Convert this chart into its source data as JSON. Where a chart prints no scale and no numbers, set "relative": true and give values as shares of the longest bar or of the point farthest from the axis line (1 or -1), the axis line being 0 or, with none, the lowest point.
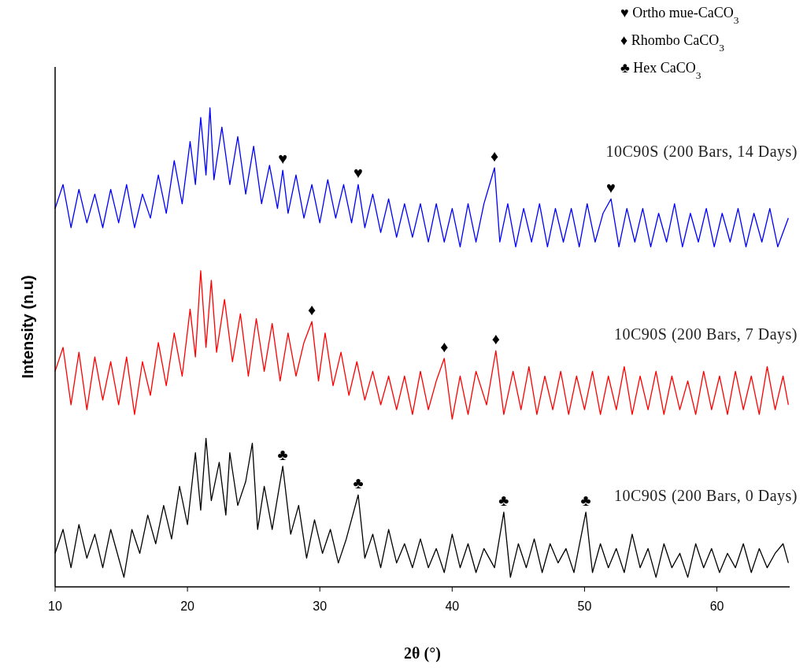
{
  "chart_data": {
    "type": "line",
    "relative": true,
    "xlabel": "2θ (°)",
    "ylabel": "Intensity (n.u)",
    "xlim": [
      10,
      65.5
    ],
    "xticks": [
      10,
      20,
      30,
      40,
      50,
      60
    ],
    "grid": false,
    "line_style": "solid",
    "series": [
      {
        "name": "10C90S (200 Bars, 14 Days)",
        "color": "#0000ff",
        "x": [
          10.0,
          10.6,
          11.2,
          11.8,
          12.4,
          13.0,
          13.6,
          14.2,
          14.8,
          15.4,
          16.0,
          16.6,
          17.2,
          17.8,
          18.4,
          19.0,
          19.6,
          20.2,
          20.6,
          21.0,
          21.4,
          21.7,
          22.0,
          22.6,
          23.2,
          23.8,
          24.4,
          25.0,
          25.6,
          26.2,
          26.8,
          27.2,
          27.6,
          28.2,
          28.8,
          29.4,
          30.0,
          30.6,
          31.2,
          31.8,
          32.4,
          32.9,
          33.4,
          34.0,
          34.6,
          35.2,
          35.8,
          36.4,
          37.0,
          37.6,
          38.2,
          38.8,
          39.4,
          40.0,
          40.6,
          41.2,
          41.8,
          42.4,
          43.2,
          43.6,
          44.2,
          44.8,
          45.4,
          46.0,
          46.6,
          47.2,
          47.8,
          48.4,
          49.0,
          49.6,
          50.2,
          50.8,
          51.4,
          52.0,
          52.6,
          53.2,
          53.8,
          54.4,
          55.0,
          55.6,
          56.2,
          56.8,
          57.4,
          58.0,
          58.6,
          59.2,
          59.8,
          60.4,
          61.0,
          61.6,
          62.2,
          62.8,
          63.4,
          64.0,
          64.6,
          65.4
        ],
        "values": [
          0.79,
          0.84,
          0.75,
          0.83,
          0.76,
          0.82,
          0.75,
          0.83,
          0.76,
          0.84,
          0.75,
          0.82,
          0.77,
          0.86,
          0.78,
          0.89,
          0.8,
          0.93,
          0.84,
          0.98,
          0.86,
          1.0,
          0.85,
          0.96,
          0.84,
          0.94,
          0.82,
          0.92,
          0.8,
          0.88,
          0.79,
          0.87,
          0.78,
          0.86,
          0.77,
          0.84,
          0.76,
          0.85,
          0.77,
          0.84,
          0.76,
          0.84,
          0.75,
          0.82,
          0.74,
          0.81,
          0.73,
          0.8,
          0.73,
          0.8,
          0.72,
          0.8,
          0.72,
          0.79,
          0.71,
          0.8,
          0.72,
          0.8,
          0.875,
          0.72,
          0.8,
          0.71,
          0.79,
          0.72,
          0.8,
          0.71,
          0.79,
          0.72,
          0.79,
          0.71,
          0.8,
          0.72,
          0.78,
          0.81,
          0.71,
          0.79,
          0.72,
          0.79,
          0.71,
          0.78,
          0.72,
          0.8,
          0.71,
          0.78,
          0.72,
          0.79,
          0.71,
          0.78,
          0.72,
          0.79,
          0.71,
          0.78,
          0.72,
          0.79,
          0.71,
          0.77
        ]
      },
      {
        "name": "10C90S (200 Bars, 7 Days)",
        "color": "#ff0000",
        "x": [
          10.0,
          10.6,
          11.2,
          11.8,
          12.4,
          13.0,
          13.6,
          14.2,
          14.8,
          15.4,
          16.0,
          16.6,
          17.2,
          17.8,
          18.4,
          19.0,
          19.6,
          20.2,
          20.6,
          21.0,
          21.4,
          21.8,
          22.2,
          22.8,
          23.4,
          24.0,
          24.6,
          25.2,
          25.8,
          26.4,
          27.0,
          27.6,
          28.2,
          28.8,
          29.4,
          29.9,
          30.4,
          31.0,
          31.6,
          32.2,
          32.8,
          33.4,
          34.0,
          34.6,
          35.2,
          35.8,
          36.4,
          37.0,
          37.6,
          38.2,
          38.8,
          39.4,
          40.0,
          40.6,
          41.2,
          41.8,
          42.6,
          43.3,
          43.9,
          44.6,
          45.2,
          45.8,
          46.4,
          47.0,
          47.6,
          48.2,
          48.8,
          49.4,
          50.0,
          50.6,
          51.2,
          51.8,
          52.4,
          53.0,
          53.6,
          54.2,
          54.8,
          55.4,
          56.0,
          56.6,
          57.2,
          57.8,
          58.4,
          59.0,
          59.6,
          60.2,
          60.8,
          61.4,
          62.0,
          62.6,
          63.2,
          63.8,
          64.4,
          65.0,
          65.4
        ],
        "values": [
          0.45,
          0.5,
          0.38,
          0.49,
          0.37,
          0.48,
          0.39,
          0.47,
          0.38,
          0.48,
          0.36,
          0.47,
          0.4,
          0.51,
          0.42,
          0.53,
          0.44,
          0.58,
          0.48,
          0.66,
          0.5,
          0.64,
          0.49,
          0.6,
          0.47,
          0.57,
          0.44,
          0.56,
          0.45,
          0.55,
          0.43,
          0.53,
          0.44,
          0.51,
          0.554,
          0.43,
          0.53,
          0.42,
          0.49,
          0.4,
          0.47,
          0.39,
          0.45,
          0.38,
          0.44,
          0.37,
          0.44,
          0.36,
          0.45,
          0.37,
          0.43,
          0.477,
          0.35,
          0.44,
          0.36,
          0.45,
          0.38,
          0.493,
          0.36,
          0.45,
          0.37,
          0.46,
          0.36,
          0.44,
          0.37,
          0.45,
          0.36,
          0.44,
          0.37,
          0.45,
          0.36,
          0.44,
          0.37,
          0.46,
          0.36,
          0.44,
          0.37,
          0.45,
          0.36,
          0.44,
          0.37,
          0.43,
          0.36,
          0.45,
          0.37,
          0.44,
          0.36,
          0.45,
          0.37,
          0.44,
          0.36,
          0.46,
          0.37,
          0.44,
          0.38
        ]
      },
      {
        "name": "10C90S (200 Bars, 0 Days)",
        "color": "#000000",
        "x": [
          10.0,
          10.6,
          11.2,
          11.8,
          12.4,
          13.0,
          13.6,
          14.2,
          14.8,
          15.2,
          15.8,
          16.4,
          17.0,
          17.6,
          18.2,
          18.8,
          19.4,
          20.0,
          20.6,
          21.0,
          21.4,
          21.8,
          22.4,
          22.9,
          23.2,
          23.8,
          24.4,
          24.9,
          25.3,
          25.8,
          26.4,
          27.2,
          27.8,
          28.4,
          29.0,
          29.6,
          30.2,
          30.8,
          31.4,
          32.0,
          32.9,
          33.4,
          34.0,
          34.6,
          35.2,
          35.8,
          36.4,
          37.0,
          37.6,
          38.2,
          38.8,
          39.4,
          40.0,
          40.6,
          41.2,
          41.8,
          42.4,
          43.2,
          43.9,
          44.4,
          45.0,
          45.6,
          46.2,
          46.8,
          47.4,
          48.0,
          48.6,
          49.2,
          50.1,
          50.6,
          51.2,
          51.8,
          52.4,
          53.0,
          53.6,
          54.2,
          54.8,
          55.4,
          56.0,
          56.6,
          57.2,
          57.8,
          58.4,
          59.0,
          59.6,
          60.2,
          60.8,
          61.4,
          62.0,
          62.6,
          63.2,
          63.8,
          64.4,
          65.0,
          65.4
        ],
        "values": [
          0.07,
          0.12,
          0.04,
          0.13,
          0.06,
          0.11,
          0.04,
          0.12,
          0.06,
          0.02,
          0.12,
          0.07,
          0.15,
          0.09,
          0.17,
          0.1,
          0.21,
          0.13,
          0.28,
          0.16,
          0.31,
          0.18,
          0.26,
          0.15,
          0.28,
          0.17,
          0.22,
          0.3,
          0.12,
          0.21,
          0.12,
          0.252,
          0.11,
          0.17,
          0.06,
          0.14,
          0.07,
          0.12,
          0.05,
          0.1,
          0.192,
          0.06,
          0.11,
          0.04,
          0.12,
          0.05,
          0.09,
          0.04,
          0.1,
          0.04,
          0.08,
          0.03,
          0.11,
          0.04,
          0.09,
          0.03,
          0.08,
          0.04,
          0.156,
          0.02,
          0.09,
          0.04,
          0.1,
          0.03,
          0.09,
          0.05,
          0.08,
          0.03,
          0.156,
          0.03,
          0.09,
          0.04,
          0.08,
          0.03,
          0.11,
          0.04,
          0.08,
          0.02,
          0.09,
          0.04,
          0.07,
          0.02,
          0.09,
          0.04,
          0.08,
          0.03,
          0.07,
          0.04,
          0.09,
          0.03,
          0.08,
          0.04,
          0.07,
          0.09,
          0.05
        ]
      }
    ],
    "annotations": [
      "♥ Ortho mue-CaCO$_{3}$",
      "♦ Rhombo CaCO$_{3}$",
      "♣ Hex CaCO$_{3}$",
      {
        "text": "♥",
        "x": 27.2,
        "y": 0.87
      },
      {
        "text": "♥",
        "x": 32.9,
        "y": 0.84
      },
      {
        "text": "♦",
        "x": 43.2,
        "y": 0.875
      },
      {
        "text": "♥",
        "x": 52.0,
        "y": 0.81
      },
      {
        "text": "♦",
        "x": 29.4,
        "y": 0.554
      },
      {
        "text": "♦",
        "x": 39.4,
        "y": 0.477
      },
      {
        "text": "♦",
        "x": 43.3,
        "y": 0.493
      },
      {
        "text": "♣",
        "x": 27.2,
        "y": 0.252
      },
      {
        "text": "♣",
        "x": 32.9,
        "y": 0.192
      },
      {
        "text": "♣",
        "x": 43.9,
        "y": 0.156
      },
      {
        "text": "♣",
        "x": 50.1,
        "y": 0.156
      }
    ]
  }
}
